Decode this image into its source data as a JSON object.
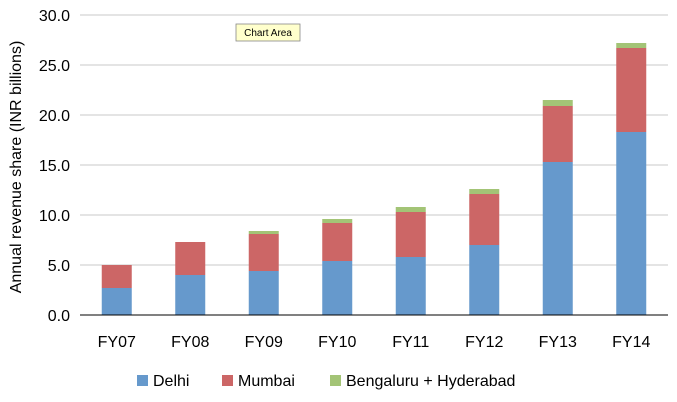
{
  "chart_data": {
    "type": "bar",
    "stacked": true,
    "categories": [
      "FY07",
      "FY08",
      "FY09",
      "FY10",
      "FY11",
      "FY12",
      "FY13",
      "FY14"
    ],
    "series": [
      {
        "name": "Delhi",
        "color": "#6699cc",
        "values": [
          2.7,
          4.0,
          4.4,
          5.4,
          5.8,
          7.0,
          15.3,
          18.3
        ]
      },
      {
        "name": "Mumbai",
        "color": "#cc6666",
        "values": [
          2.3,
          3.3,
          3.7,
          3.8,
          4.5,
          5.1,
          5.6,
          8.4
        ]
      },
      {
        "name": "Bengaluru + Hyderabad",
        "color": "#a3c476",
        "values": [
          0.0,
          0.0,
          0.3,
          0.4,
          0.5,
          0.5,
          0.6,
          0.5
        ]
      }
    ],
    "ylabel": "Annual revenue share (INR billions)",
    "xlabel": "",
    "ylim": [
      0,
      30
    ],
    "yticks": [
      "0.0",
      "5.0",
      "10.0",
      "15.0",
      "20.0",
      "25.0",
      "30.0"
    ],
    "grid": true,
    "legend": "bottom",
    "tooltip": "Chart Area"
  }
}
